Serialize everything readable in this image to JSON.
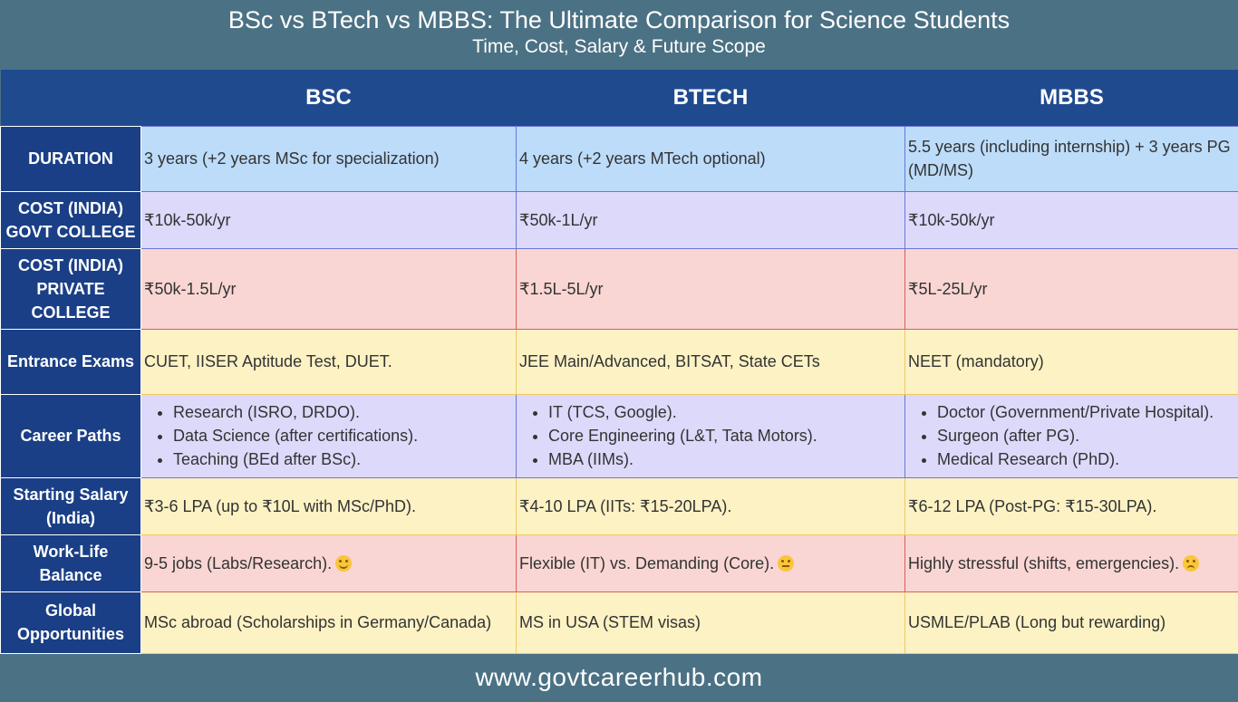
{
  "header": {
    "title": "BSc vs BTech vs MBBS: The Ultimate Comparison for Science Students",
    "subtitle": "Time, Cost, Salary & Future Scope"
  },
  "columns": [
    "BSC",
    "BTECH",
    "MBBS"
  ],
  "rows": {
    "duration": {
      "label": "DURATION",
      "bsc": "3 years (+2 years MSc for specialization)",
      "btech": "4 years (+2 years MTech optional)",
      "mbbs": "5.5 years (including internship) + 3 years PG (MD/MS)"
    },
    "cost_govt": {
      "label": "COST (INDIA) GOVT COLLEGE",
      "bsc": "₹10k-50k/yr",
      "btech": "₹50k-1L/yr",
      "mbbs": "₹10k-50k/yr"
    },
    "cost_private": {
      "label": "COST (INDIA) PRIVATE COLLEGE",
      "bsc": "₹50k-1.5L/yr",
      "btech": "₹1.5L-5L/yr",
      "mbbs": "₹5L-25L/yr"
    },
    "entrance": {
      "label": "Entrance Exams",
      "bsc": "CUET, IISER Aptitude Test, DUET.",
      "btech": "JEE Main/Advanced, BITSAT, State CETs",
      "mbbs": "NEET (mandatory)"
    },
    "career": {
      "label": "Career Paths",
      "bsc": [
        "Research (ISRO, DRDO).",
        "Data Science (after certifications).",
        "Teaching (BEd after BSc)."
      ],
      "btech": [
        "IT (TCS, Google).",
        "Core Engineering (L&T, Tata Motors).",
        "MBA (IIMs)."
      ],
      "mbbs": [
        "Doctor (Government/Private Hospital).",
        "Surgeon (after PG).",
        "Medical Research (PhD)."
      ]
    },
    "salary": {
      "label": "Starting Salary (India)",
      "bsc": "₹3-6 LPA (up to ₹10L with MSc/PhD).",
      "btech": "₹4-10 LPA (IITs: ₹15-20LPA).",
      "mbbs": "₹6-12 LPA (Post-PG: ₹15-30LPA)."
    },
    "worklife": {
      "label": "Work-Life Balance",
      "bsc": "9-5 jobs (Labs/Research).",
      "btech": "Flexible (IT) vs. Demanding (Core).",
      "mbbs": "Highly stressful (shifts, emergencies).",
      "bsc_icon": "smiling-face-icon",
      "btech_icon": "neutral-face-icon",
      "mbbs_icon": "sad-face-icon"
    },
    "global": {
      "label": "Global Opportunities",
      "bsc": "MSc abroad (Scholarships in Germany/Canada)",
      "btech": "MS in USA (STEM visas)",
      "mbbs": "USMLE/PLAB (Long but rewarding)"
    }
  },
  "footer": {
    "url": "www.govtcareerhub.com"
  },
  "colors": {
    "header_bg": "#4b7184",
    "column_header_bg": "#1f4a8e",
    "row_header_bg": "#1a3f86",
    "blue_row": "#bcdcf9",
    "lavender_row": "#ddd9fb",
    "pink_row": "#f9d6d3",
    "yellow_row": "#fdf2c4"
  }
}
